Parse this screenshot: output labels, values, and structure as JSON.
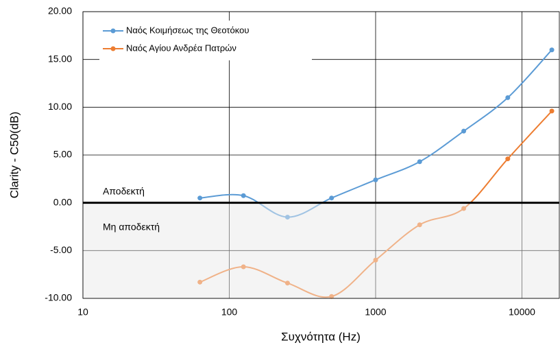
{
  "chart_data": {
    "type": "line",
    "x_label": "Συχνότητα (Hz)",
    "y_label": "Clarity - C50(dB)",
    "x": [
      63,
      125,
      250,
      500,
      1000,
      2000,
      4000,
      8000,
      16000
    ],
    "series": [
      {
        "name": "Ναός Κοιμήσεως της Θεοτόκου",
        "color": "#5b9bd5",
        "values": [
          0.5,
          0.75,
          -1.5,
          0.5,
          2.4,
          4.3,
          7.5,
          11.0,
          16.0
        ]
      },
      {
        "name": "Ναός Αγίου Ανδρέα Πατρών",
        "color": "#ed7d31",
        "values": [
          -8.3,
          -6.7,
          -8.4,
          -9.8,
          -6.0,
          -2.3,
          -0.6,
          4.6,
          9.6
        ]
      }
    ],
    "x_log": true,
    "smooth": true,
    "xlim": [
      10,
      18000
    ],
    "xticks": [
      10,
      100,
      1000,
      10000
    ],
    "ylim": [
      -10,
      20
    ],
    "yticks": [
      {
        "value": -10,
        "label": "-10.00"
      },
      {
        "value": -5,
        "label": "-5.00"
      },
      {
        "value": 0,
        "label": "0.00"
      },
      {
        "value": 5,
        "label": "5.00"
      },
      {
        "value": 10,
        "label": "10.00"
      },
      {
        "value": 15,
        "label": "15.00"
      },
      {
        "value": 20,
        "label": "20.00"
      }
    ],
    "grid": true,
    "legend": "upper left",
    "reference_line": 0,
    "annotations": [
      "Αποδεκτή",
      "Μη αποδεκτή"
    ]
  }
}
